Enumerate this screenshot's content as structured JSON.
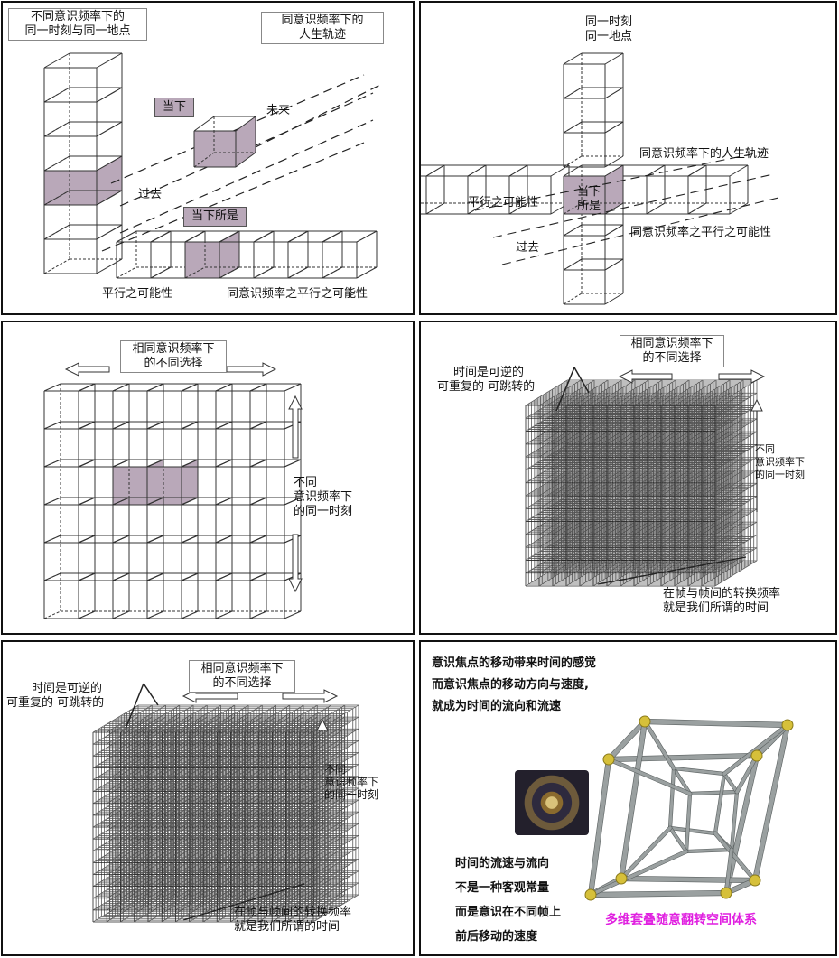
{
  "p1": {
    "title_left": [
      "不同意识频率下的",
      "同一时刻与同一地点"
    ],
    "title_right": [
      "同意识频率下的",
      "人生轨迹"
    ],
    "now": "当下",
    "future": "未来",
    "past": "过去",
    "all_now": "当下所是",
    "parallel": "平行之可能性",
    "same_parallel": "同意识频率之平行之可能性"
  },
  "p2": {
    "title": [
      "同一时刻",
      "同一地点"
    ],
    "trajectory": "同意识频率下的人生轨迹",
    "parallel": "平行之可能性",
    "now_all": [
      "当下",
      "所是"
    ],
    "same_parallel": "同意识频率之平行之可能性",
    "past": "过去"
  },
  "p3": {
    "top": [
      "相同意识频率下",
      "的不同选择"
    ],
    "right": [
      "不同",
      "意识频率下",
      "的同一时刻"
    ]
  },
  "p4": {
    "top": [
      "相同意识频率下",
      "的不同选择"
    ],
    "left": [
      "时间是可逆的",
      "可重复的 可跳转的"
    ],
    "right": [
      "不同",
      "意识频率下",
      "的同一时刻"
    ],
    "bottom": [
      "在帧与帧间的转换频率",
      "就是我们所谓的时间"
    ]
  },
  "p5": {
    "top": [
      "相同意识频率下",
      "的不同选择"
    ],
    "left": [
      "时间是可逆的",
      "可重复的 可跳转的"
    ],
    "right": [
      "不同",
      "意识频率下",
      "的同一时刻"
    ],
    "bottom": [
      "在帧与帧间的转换频率",
      "就是我们所谓的时间"
    ]
  },
  "p6": {
    "lines": [
      "意识焦点的移动带来时间的感觉",
      "而意识焦点的移动方向与速度,",
      "就成为时间的流向和流速"
    ],
    "bottom": [
      "时间的流速与流向",
      "不是一种客观常量",
      "而是意识在不同帧上",
      "前后移动的速度"
    ],
    "magenta": "多维套叠随意翻转空间体系"
  }
}
